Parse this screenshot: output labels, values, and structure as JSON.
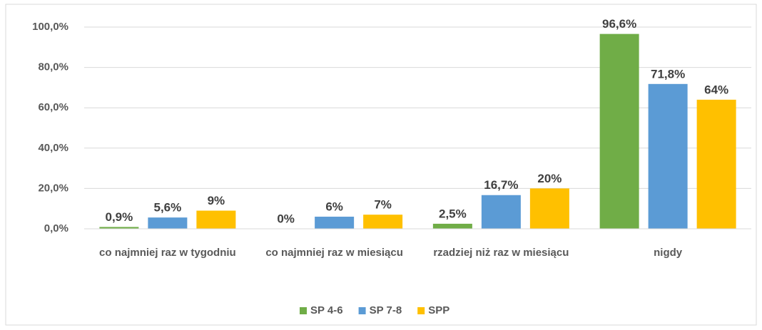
{
  "chart_data": {
    "type": "bar",
    "categories": [
      "co najmniej raz w tygodniu",
      "co najmniej raz w miesiącu",
      "rzadziej niż raz w miesiącu",
      "nigdy"
    ],
    "series": [
      {
        "name": "SP 4-6",
        "color": "#70ad47",
        "values": [
          0.9,
          0,
          2.5,
          96.6
        ],
        "value_labels": [
          "0,9%",
          "0%",
          "2,5%",
          "96,6%"
        ]
      },
      {
        "name": "SP 7-8",
        "color": "#5b9bd5",
        "values": [
          5.6,
          6,
          16.7,
          71.8
        ],
        "value_labels": [
          "5,6%",
          "6%",
          "16,7%",
          "71,8%"
        ]
      },
      {
        "name": "SPP",
        "color": "#ffc000",
        "values": [
          9,
          7,
          20,
          64
        ],
        "value_labels": [
          "9%",
          "7%",
          "20%",
          "64%"
        ]
      }
    ],
    "ylim": [
      0,
      100
    ],
    "yticks": [
      {
        "value": 0,
        "label": "0,0%"
      },
      {
        "value": 20,
        "label": "20,0%"
      },
      {
        "value": 40,
        "label": "40,0%"
      },
      {
        "value": 60,
        "label": "60,0%"
      },
      {
        "value": 80,
        "label": "80,0%"
      },
      {
        "value": 100,
        "label": "100,0%"
      }
    ],
    "grid": true,
    "legend": "bottom"
  }
}
